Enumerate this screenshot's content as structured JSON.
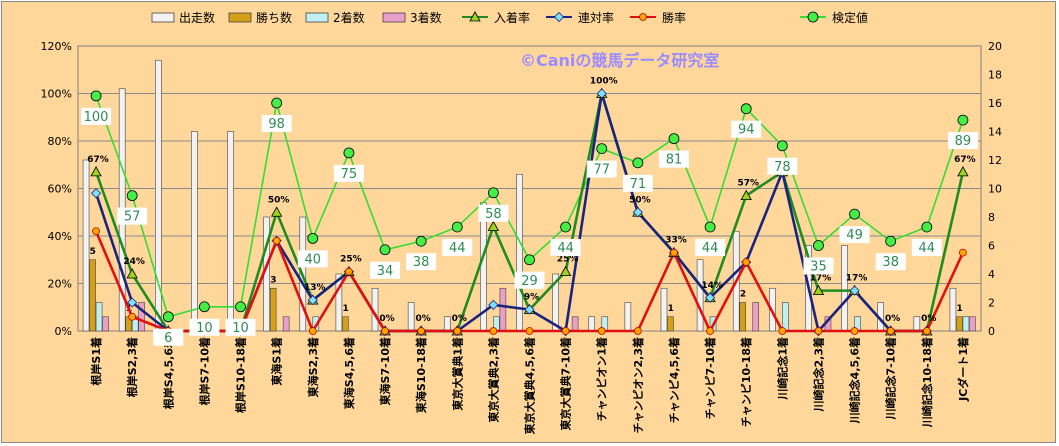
{
  "chart_data": {
    "type": "bar+line",
    "watermark": "©Caniの競馬データ研究室",
    "categories": [
      "根岸S1着",
      "根岸S2,3着",
      "根岸S4,5,6着",
      "根岸S7-10着",
      "根岸S10-18着",
      "東海S1着",
      "東海S2,3着",
      "東海S4,5,6着",
      "東海S7-10着",
      "東海S10-18着",
      "東京大賞典1着",
      "東京大賞典2,3着",
      "東京大賞典4,5,6着",
      "東京大賞典7-10着",
      "チャンピオン1着",
      "チャンピオン2,3着",
      "チャンピ4,5,6着",
      "チャンピ7-10着",
      "チャンピ10-18着",
      "川崎記念1着",
      "川崎記念2,3着",
      "川崎記念4,5,6着",
      "川崎記念7-10着",
      "川崎記念10-18着",
      "JCダート1着"
    ],
    "y_left": {
      "min": 0,
      "max": 120,
      "ticks": [
        "0%",
        "20%",
        "40%",
        "60%",
        "80%",
        "100%",
        "120%"
      ]
    },
    "y_right": {
      "min": 0,
      "max": 20,
      "ticks": [
        "0",
        "2",
        "4",
        "6",
        "8",
        "10",
        "12",
        "14",
        "16",
        "18",
        "20"
      ]
    },
    "grid": true,
    "legend_position": "top",
    "bar_series": [
      {
        "name": "出走数",
        "color": "#F2F2F2",
        "values": [
          12,
          17,
          19,
          14,
          14,
          8,
          8,
          4,
          3,
          2,
          1,
          9,
          11,
          4,
          1,
          2,
          3,
          5,
          7,
          3,
          6,
          6,
          2,
          1,
          3
        ]
      },
      {
        "name": "勝ち数",
        "color": "#D4A017",
        "values": [
          5,
          1,
          0,
          0,
          0,
          3,
          0,
          1,
          0,
          0,
          0,
          0,
          0,
          0,
          0,
          0,
          1,
          0,
          2,
          0,
          0,
          0,
          0,
          0,
          1
        ]
      },
      {
        "name": "2着数",
        "color": "#BFEFEF",
        "values": [
          2,
          1,
          0,
          0,
          0,
          0,
          1,
          0,
          0,
          0,
          0,
          1,
          0,
          0,
          1,
          0,
          0,
          1,
          0,
          2,
          0,
          1,
          0,
          0,
          1
        ]
      },
      {
        "name": "3着数",
        "color": "#E8A0C8",
        "values": [
          1,
          2,
          0,
          0,
          0,
          1,
          0,
          0,
          0,
          0,
          0,
          3,
          0,
          1,
          0,
          0,
          0,
          0,
          2,
          0,
          1,
          0,
          0,
          0,
          1
        ]
      }
    ],
    "line_series": [
      {
        "name": "入着率",
        "color": "#1E8C1E",
        "marker": "triangle",
        "values": [
          67,
          24,
          0,
          0,
          0,
          50,
          13,
          25,
          0,
          0,
          0,
          44,
          9,
          25,
          100,
          50,
          33,
          14,
          57,
          67,
          17,
          17,
          0,
          0,
          67
        ],
        "labels": [
          "67%",
          "24%",
          "",
          "",
          "",
          "50%",
          "13%",
          "25%",
          "0%",
          "0%",
          "0%",
          "",
          "9%",
          "25%",
          "100%",
          "50%",
          "33%",
          "14%",
          "57%",
          "",
          "17%",
          "17%",
          "0%",
          "0%",
          "67%"
        ]
      },
      {
        "name": "連対率",
        "color": "#1A237E",
        "marker": "diamond",
        "values": [
          58,
          12,
          0,
          0,
          0,
          38,
          13,
          25,
          0,
          0,
          0,
          11,
          9,
          0,
          100,
          50,
          33,
          14,
          29,
          67,
          0,
          17,
          0,
          0,
          null
        ]
      },
      {
        "name": "勝率",
        "color": "#E01010",
        "marker": "circle",
        "values": [
          42,
          6,
          0,
          0,
          0,
          38,
          0,
          25,
          0,
          0,
          0,
          0,
          0,
          0,
          0,
          0,
          33,
          0,
          29,
          0,
          0,
          0,
          0,
          0,
          33
        ]
      }
    ],
    "check_series": {
      "name": "検定値",
      "color": "#33DD33",
      "axis": "right",
      "values": [
        16.5,
        9.5,
        1.0,
        1.7,
        1.7,
        16.0,
        6.5,
        12.5,
        5.7,
        6.3,
        7.3,
        9.7,
        5.0,
        7.3,
        12.8,
        11.8,
        13.5,
        7.3,
        15.6,
        13.0,
        6.0,
        8.2,
        6.3,
        7.3,
        14.8
      ],
      "labels": [
        "100",
        "57",
        "6",
        "10",
        "10",
        "98",
        "40",
        "75",
        "34",
        "38",
        "44",
        "58",
        "29",
        "44",
        "77",
        "71",
        "81",
        "44",
        "94",
        "78",
        "35",
        "49",
        "38",
        "44",
        "89"
      ]
    }
  }
}
